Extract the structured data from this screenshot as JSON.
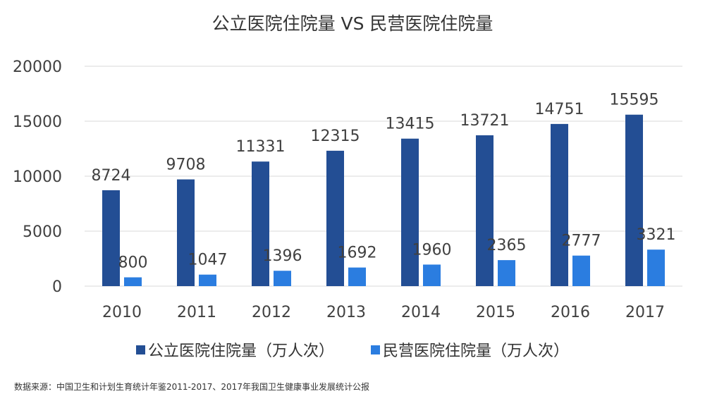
{
  "chart_data": {
    "type": "bar",
    "title": "公立医院住院量 VS 民营医院住院量",
    "categories": [
      "2010",
      "2011",
      "2012",
      "2013",
      "2014",
      "2015",
      "2016",
      "2017"
    ],
    "series": [
      {
        "name": "公立医院住院量（万人次）",
        "color": "#234e94",
        "values": [
          8724,
          9708,
          11331,
          12315,
          13415,
          13721,
          14751,
          15595
        ]
      },
      {
        "name": "民营医院住院量（万人次）",
        "color": "#2b7de0",
        "values": [
          800,
          1047,
          1396,
          1692,
          1960,
          2365,
          2777,
          3321
        ]
      }
    ],
    "ylim": [
      0,
      20000
    ],
    "yticks": [
      0,
      5000,
      10000,
      15000,
      20000
    ],
    "xlabel": "",
    "ylabel": "",
    "grid": true,
    "legend_position": "bottom"
  },
  "source": "数据来源：中国卫生和计划生育统计年鉴2011-2017、2017年我国卫生健康事业发展统计公报"
}
